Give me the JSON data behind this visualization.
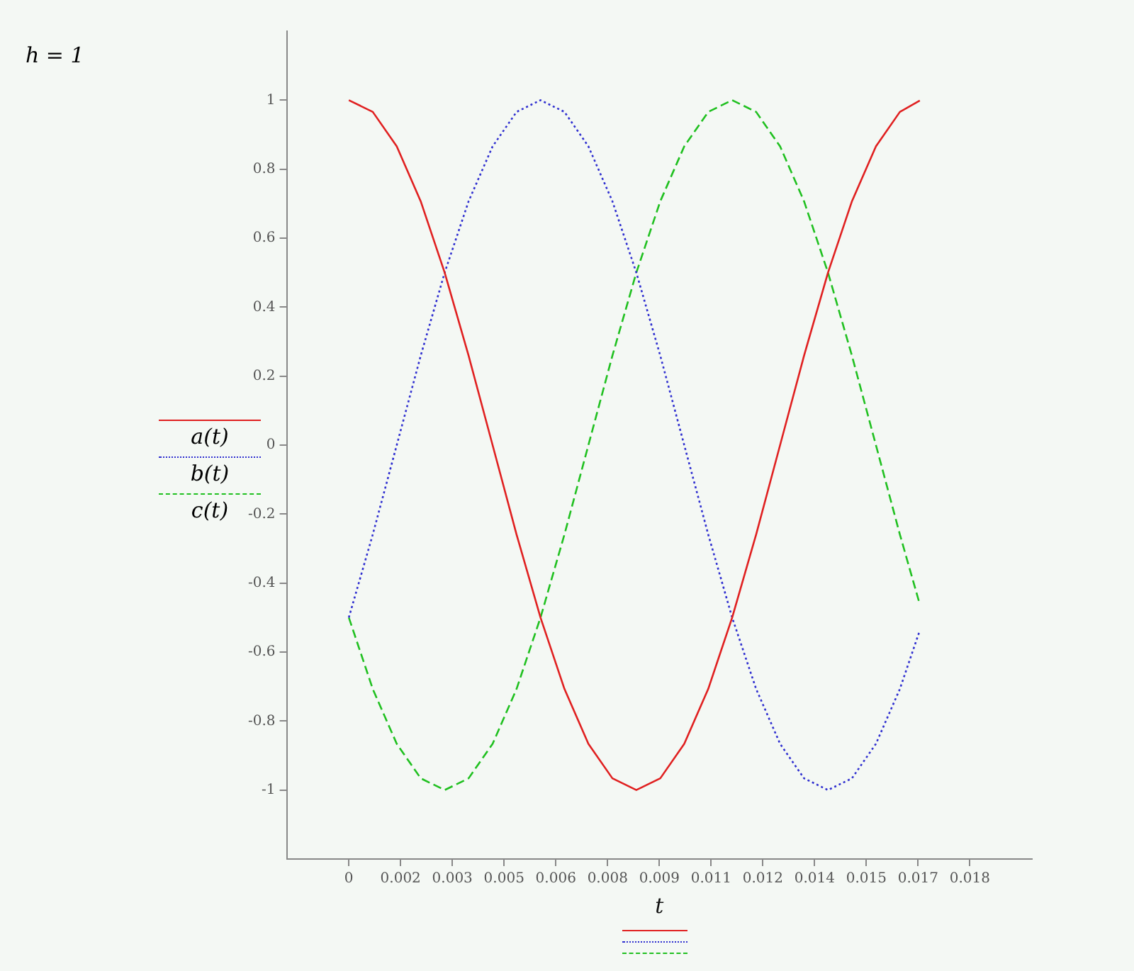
{
  "chart_data": {
    "type": "line",
    "xlabel": "t",
    "annotations": [
      "h = 1"
    ],
    "x": [
      0,
      0.000694,
      0.001389,
      0.002083,
      0.002778,
      0.003472,
      0.004167,
      0.004861,
      0.005556,
      0.00625,
      0.006944,
      0.007639,
      0.008333,
      0.009028,
      0.009722,
      0.010417,
      0.011111,
      0.011806,
      0.0125,
      0.013194,
      0.013889,
      0.014583,
      0.015278,
      0.015972,
      0.01655
    ],
    "series": [
      {
        "name": "a(t)",
        "color": "#e02020",
        "line_style": "solid",
        "values": [
          1,
          0.966,
          0.866,
          0.707,
          0.5,
          0.259,
          0,
          -0.259,
          -0.5,
          -0.707,
          -0.866,
          -0.966,
          -1,
          -0.966,
          -0.866,
          -0.707,
          -0.5,
          -0.259,
          0,
          0.259,
          0.5,
          0.707,
          0.866,
          0.966,
          0.999
        ]
      },
      {
        "name": "b(t)",
        "color": "#3030d0",
        "line_style": "dotted",
        "values": [
          -0.5,
          -0.259,
          0,
          0.259,
          0.5,
          0.707,
          0.866,
          0.966,
          1,
          0.966,
          0.866,
          0.707,
          0.5,
          0.259,
          0,
          -0.259,
          -0.5,
          -0.707,
          -0.866,
          -0.966,
          -1,
          -0.966,
          -0.866,
          -0.707,
          -0.537
        ]
      },
      {
        "name": "c(t)",
        "color": "#20c020",
        "line_style": "dashed",
        "values": [
          -0.5,
          -0.707,
          -0.866,
          -0.966,
          -1,
          -0.966,
          -0.866,
          -0.707,
          -0.5,
          -0.259,
          0,
          0.259,
          0.5,
          0.707,
          0.866,
          0.966,
          1,
          0.966,
          0.866,
          0.707,
          0.5,
          0.259,
          0,
          -0.259,
          -0.462
        ]
      }
    ],
    "xlim": [
      -0.0018,
      0.0198
    ],
    "ylim": [
      -1.2,
      1.2
    ],
    "xticks": [
      {
        "value": 0,
        "label": "0"
      },
      {
        "value": 0.0015,
        "label": "0.002"
      },
      {
        "value": 0.003,
        "label": "0.003"
      },
      {
        "value": 0.0045,
        "label": "0.005"
      },
      {
        "value": 0.006,
        "label": "0.006"
      },
      {
        "value": 0.0075,
        "label": "0.008"
      },
      {
        "value": 0.009,
        "label": "0.009"
      },
      {
        "value": 0.0105,
        "label": "0.011"
      },
      {
        "value": 0.012,
        "label": "0.012"
      },
      {
        "value": 0.0135,
        "label": "0.014"
      },
      {
        "value": 0.015,
        "label": "0.015"
      },
      {
        "value": 0.0165,
        "label": "0.017"
      },
      {
        "value": 0.018,
        "label": "0.018"
      }
    ],
    "yticks": [
      -1,
      -0.8,
      -0.6,
      -0.4,
      -0.2,
      0,
      0.2,
      0.4,
      0.6,
      0.8,
      1
    ],
    "grid": false,
    "legend": "left",
    "marker": "none"
  }
}
